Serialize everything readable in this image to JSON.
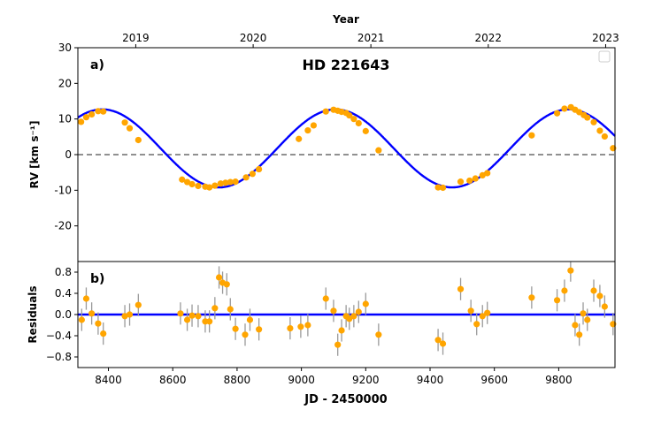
{
  "chart_data": [
    {
      "type": "scatter",
      "panel_label": "a)",
      "title": "HD 221643",
      "ylabel": "RV [km s⁻¹]",
      "top_xlabel": "Year",
      "xlim": [
        8305,
        9975
      ],
      "ylim": [
        -30,
        30
      ],
      "y_ticks": [
        30,
        20,
        10,
        0,
        -10,
        -20
      ],
      "top_ticks": [
        {
          "label": "2019",
          "x": 8485
        },
        {
          "label": "2020",
          "x": 8850
        },
        {
          "label": "2021",
          "x": 9216
        },
        {
          "label": "2022",
          "x": 9581
        },
        {
          "label": "2023",
          "x": 9946
        }
      ],
      "reference_line_y": 0,
      "legend": "top-right (empty)",
      "colors": {
        "model": "#0000ff",
        "points": "#ffa500",
        "errorbars": "#9a9a9a",
        "reference": "#808080"
      },
      "model": {
        "amplitude": 10.95,
        "offset": 1.75,
        "period": 725,
        "phase_ref_x": 8381
      },
      "series": [
        {
          "name": "",
          "points": [
            [
              8315,
              9.2
            ],
            [
              8331,
              10.5
            ],
            [
              8348,
              11.3
            ],
            [
              8368,
              12.2
            ],
            [
              8384,
              12.1
            ],
            [
              8451,
              9.0
            ],
            [
              8466,
              7.4
            ],
            [
              8493,
              4.1
            ],
            [
              8629,
              -7.0
            ],
            [
              8645,
              -7.7
            ],
            [
              8660,
              -8.3
            ],
            [
              8679,
              -8.8
            ],
            [
              8701,
              -9.0
            ],
            [
              8714,
              -9.2
            ],
            [
              8731,
              -8.7
            ],
            [
              8749,
              -8.1
            ],
            [
              8764,
              -7.9
            ],
            [
              8779,
              -7.7
            ],
            [
              8795,
              -7.6
            ],
            [
              8828,
              -6.4
            ],
            [
              8848,
              -5.4
            ],
            [
              8868,
              -4.1
            ],
            [
              8992,
              4.4
            ],
            [
              9020,
              6.8
            ],
            [
              9038,
              8.2
            ],
            [
              9076,
              12.1
            ],
            [
              9100,
              12.6
            ],
            [
              9113,
              12.3
            ],
            [
              9125,
              12.0
            ],
            [
              9139,
              11.7
            ],
            [
              9149,
              11.0
            ],
            [
              9163,
              10.0
            ],
            [
              9178,
              8.8
            ],
            [
              9200,
              6.6
            ],
            [
              9240,
              1.2
            ],
            [
              9425,
              -9.2
            ],
            [
              9440,
              -9.3
            ],
            [
              9495,
              -7.6
            ],
            [
              9523,
              -7.3
            ],
            [
              9541,
              -6.7
            ],
            [
              9563,
              -5.8
            ],
            [
              9578,
              -5.2
            ],
            [
              9716,
              5.4
            ],
            [
              9795,
              11.6
            ],
            [
              9818,
              12.9
            ],
            [
              9838,
              13.3
            ],
            [
              9851,
              12.6
            ],
            [
              9864,
              11.9
            ],
            [
              9878,
              11.1
            ],
            [
              9889,
              10.4
            ],
            [
              9909,
              9.1
            ],
            [
              9928,
              6.7
            ],
            [
              9943,
              5.1
            ],
            [
              9969,
              1.8
            ]
          ]
        }
      ]
    },
    {
      "type": "scatter",
      "panel_label": "b)",
      "ylabel": "Residuals",
      "xlabel": "JD - 2450000",
      "xlim": [
        8305,
        9975
      ],
      "ylim": [
        -1.0,
        1.0
      ],
      "x_ticks": [
        8400,
        8600,
        8800,
        9000,
        9200,
        9400,
        9600,
        9800
      ],
      "y_ticks": [
        "0.8",
        "0.4",
        "0.0",
        "−0.4",
        "−0.8"
      ],
      "y_tick_values": [
        0.8,
        0.4,
        0.0,
        -0.4,
        -0.8
      ],
      "reference_line_y": 0,
      "series": [
        {
          "name": "",
          "points": [
            [
              8317,
              -0.1
            ],
            [
              8331,
              0.3
            ],
            [
              8348,
              0.02
            ],
            [
              8368,
              -0.17
            ],
            [
              8384,
              -0.36
            ],
            [
              8451,
              -0.03
            ],
            [
              8466,
              0.0
            ],
            [
              8493,
              0.18
            ],
            [
              8624,
              0.02
            ],
            [
              8645,
              -0.1
            ],
            [
              8660,
              -0.02
            ],
            [
              8679,
              -0.03
            ],
            [
              8701,
              -0.13
            ],
            [
              8714,
              -0.13
            ],
            [
              8731,
              0.12
            ],
            [
              8744,
              0.7
            ],
            [
              8755,
              0.6
            ],
            [
              8768,
              0.57
            ],
            [
              8779,
              0.1
            ],
            [
              8795,
              -0.27
            ],
            [
              8825,
              -0.38
            ],
            [
              8840,
              -0.1
            ],
            [
              8868,
              -0.28
            ],
            [
              8965,
              -0.26
            ],
            [
              8998,
              -0.23
            ],
            [
              9020,
              -0.2
            ],
            [
              9076,
              0.3
            ],
            [
              9100,
              0.07
            ],
            [
              9113,
              -0.57
            ],
            [
              9125,
              -0.3
            ],
            [
              9139,
              -0.03
            ],
            [
              9149,
              -0.08
            ],
            [
              9163,
              -0.03
            ],
            [
              9178,
              0.05
            ],
            [
              9200,
              0.2
            ],
            [
              9240,
              -0.38
            ],
            [
              9425,
              -0.48
            ],
            [
              9440,
              -0.55
            ],
            [
              9495,
              0.48
            ],
            [
              9527,
              0.07
            ],
            [
              9545,
              -0.18
            ],
            [
              9563,
              -0.03
            ],
            [
              9578,
              0.03
            ],
            [
              9716,
              0.32
            ],
            [
              9795,
              0.27
            ],
            [
              9818,
              0.45
            ],
            [
              9837,
              0.83
            ],
            [
              9851,
              -0.2
            ],
            [
              9864,
              -0.38
            ],
            [
              9876,
              0.02
            ],
            [
              9889,
              -0.1
            ],
            [
              9909,
              0.45
            ],
            [
              9928,
              0.35
            ],
            [
              9943,
              0.15
            ],
            [
              9969,
              -0.18
            ]
          ]
        }
      ]
    }
  ]
}
